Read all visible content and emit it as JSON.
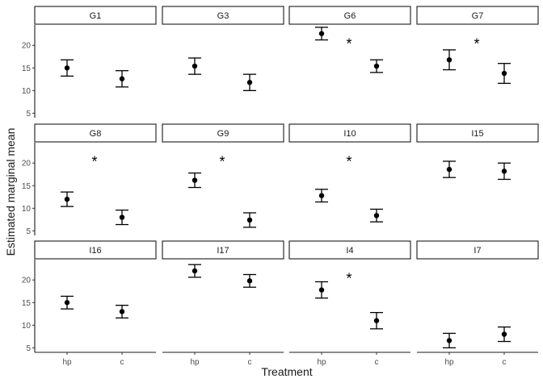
{
  "chart_data": {
    "type": "scatter",
    "subtype": "point-errorbar faceted",
    "xlabel": "Treatment",
    "ylabel": "Estimated marginal mean",
    "categories": [
      "hp",
      "c"
    ],
    "ylim": [
      4,
      24.5
    ],
    "yticks": [
      5,
      10,
      15,
      20
    ],
    "significance_marker": "*",
    "facets": [
      {
        "name": "G1",
        "sig": false,
        "points": [
          {
            "x": "hp",
            "y": 15.0,
            "low": 13.2,
            "high": 16.8
          },
          {
            "x": "c",
            "y": 12.6,
            "low": 10.8,
            "high": 14.4
          }
        ]
      },
      {
        "name": "G3",
        "sig": false,
        "points": [
          {
            "x": "hp",
            "y": 15.4,
            "low": 13.6,
            "high": 17.2
          },
          {
            "x": "c",
            "y": 11.8,
            "low": 10.0,
            "high": 13.6
          }
        ]
      },
      {
        "name": "G6",
        "sig": true,
        "points": [
          {
            "x": "hp",
            "y": 22.6,
            "low": 21.2,
            "high": 24.0
          },
          {
            "x": "c",
            "y": 15.4,
            "low": 14.0,
            "high": 16.8
          }
        ]
      },
      {
        "name": "G7",
        "sig": true,
        "points": [
          {
            "x": "hp",
            "y": 16.8,
            "low": 14.6,
            "high": 19.0
          },
          {
            "x": "c",
            "y": 13.8,
            "low": 11.6,
            "high": 16.0
          }
        ]
      },
      {
        "name": "G8",
        "sig": true,
        "points": [
          {
            "x": "hp",
            "y": 12.0,
            "low": 10.4,
            "high": 13.6
          },
          {
            "x": "c",
            "y": 8.0,
            "low": 6.4,
            "high": 9.6
          }
        ]
      },
      {
        "name": "G9",
        "sig": true,
        "points": [
          {
            "x": "hp",
            "y": 16.2,
            "low": 14.6,
            "high": 17.8
          },
          {
            "x": "c",
            "y": 7.4,
            "low": 5.8,
            "high": 9.0
          }
        ]
      },
      {
        "name": "I10",
        "sig": true,
        "points": [
          {
            "x": "hp",
            "y": 12.8,
            "low": 11.4,
            "high": 14.2
          },
          {
            "x": "c",
            "y": 8.4,
            "low": 7.0,
            "high": 9.8
          }
        ]
      },
      {
        "name": "I15",
        "sig": false,
        "points": [
          {
            "x": "hp",
            "y": 18.6,
            "low": 16.8,
            "high": 20.4
          },
          {
            "x": "c",
            "y": 18.2,
            "low": 16.4,
            "high": 20.0
          }
        ]
      },
      {
        "name": "I16",
        "sig": false,
        "points": [
          {
            "x": "hp",
            "y": 15.0,
            "low": 13.6,
            "high": 16.4
          },
          {
            "x": "c",
            "y": 13.0,
            "low": 11.6,
            "high": 14.4
          }
        ]
      },
      {
        "name": "I17",
        "sig": false,
        "points": [
          {
            "x": "hp",
            "y": 22.0,
            "low": 20.6,
            "high": 23.4
          },
          {
            "x": "c",
            "y": 19.8,
            "low": 18.4,
            "high": 21.2
          }
        ]
      },
      {
        "name": "I4",
        "sig": true,
        "points": [
          {
            "x": "hp",
            "y": 17.8,
            "low": 16.0,
            "high": 19.6
          },
          {
            "x": "c",
            "y": 11.0,
            "low": 9.2,
            "high": 12.8
          }
        ]
      },
      {
        "name": "I7",
        "sig": false,
        "points": [
          {
            "x": "hp",
            "y": 6.6,
            "low": 5.0,
            "high": 8.2
          },
          {
            "x": "c",
            "y": 8.0,
            "low": 6.4,
            "high": 9.6
          }
        ]
      }
    ]
  }
}
